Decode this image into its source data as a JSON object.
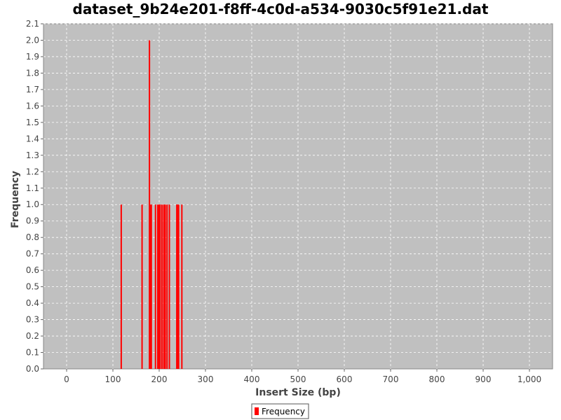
{
  "chart_data": {
    "type": "bar",
    "title": "dataset_9b24e201-f8ff-4c0d-a534-9030c5f91e21.dat",
    "xlabel": "Insert Size (bp)",
    "ylabel": "Frequency",
    "xlim": [
      -50,
      1050
    ],
    "ylim": [
      0,
      2.1
    ],
    "x_ticks": [
      0,
      100,
      200,
      300,
      400,
      500,
      600,
      700,
      800,
      900,
      1000
    ],
    "x_tick_labels": [
      "0",
      "100",
      "200",
      "300",
      "400",
      "500",
      "600",
      "700",
      "800",
      "900",
      "1,000"
    ],
    "y_ticks": [
      0,
      0.1,
      0.2,
      0.3,
      0.4,
      0.5,
      0.6,
      0.7,
      0.8,
      0.9,
      1.0,
      1.1,
      1.2,
      1.3,
      1.4,
      1.5,
      1.6,
      1.7,
      1.8,
      1.9,
      2.0,
      2.1
    ],
    "y_tick_labels": [
      "0.0",
      "0.1",
      "0.2",
      "0.3",
      "0.4",
      "0.5",
      "0.6",
      "0.7",
      "0.8",
      "0.9",
      "1.0",
      "1.1",
      "1.2",
      "1.3",
      "1.4",
      "1.5",
      "1.6",
      "1.7",
      "1.8",
      "1.9",
      "2.0",
      "2.1"
    ],
    "grid": true,
    "legend_position": "bottom",
    "background_color": "#c0c0c0",
    "series": [
      {
        "name": "Frequency",
        "color": "#ff0000",
        "x": [
          118,
          163,
          179,
          181,
          183,
          192,
          197,
          200,
          202,
          206,
          210,
          213,
          217,
          222,
          238,
          240,
          242,
          249
        ],
        "values": [
          1,
          1,
          2,
          1,
          1,
          1,
          1,
          1,
          1,
          1,
          1,
          1,
          1,
          1,
          1,
          1,
          1,
          1
        ]
      }
    ]
  }
}
